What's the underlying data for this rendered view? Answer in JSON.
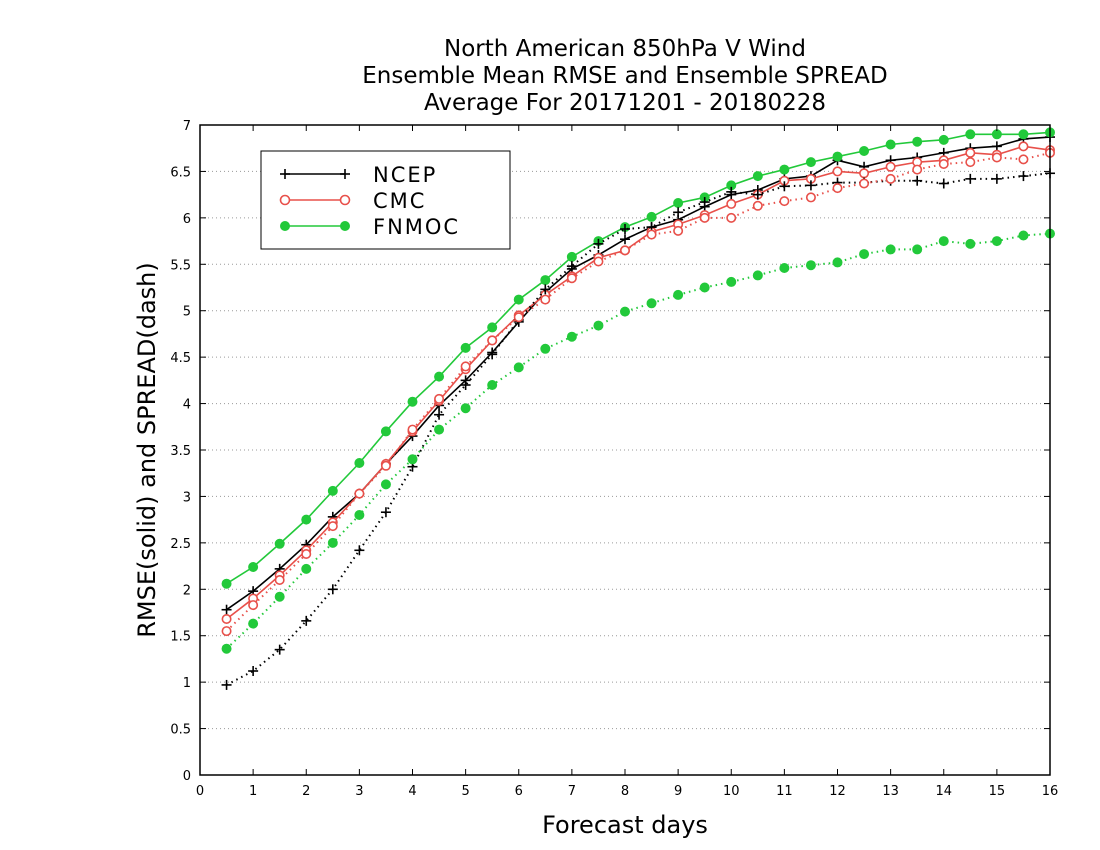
{
  "chart_data": {
    "type": "line",
    "title_lines": [
      "North American 850hPa V Wind",
      "Ensemble Mean RMSE and Ensemble SPREAD",
      "Average For 20171201 - 20180228"
    ],
    "xlabel": "Forecast days",
    "ylabel": "RMSE(solid) and SPREAD(dash)",
    "xlim": [
      0,
      16
    ],
    "ylim": [
      0,
      7
    ],
    "xticks": [
      0,
      1,
      2,
      3,
      4,
      5,
      6,
      7,
      8,
      9,
      10,
      11,
      12,
      13,
      14,
      15,
      16
    ],
    "yticks": [
      0,
      0.5,
      1,
      1.5,
      2,
      2.5,
      3,
      3.5,
      4,
      4.5,
      5,
      5.5,
      6,
      6.5,
      7
    ],
    "grid": "horizontal dotted",
    "legend_position": "top-left",
    "x": [
      0.5,
      1,
      1.5,
      2,
      2.5,
      3,
      3.5,
      4,
      4.5,
      5,
      5.5,
      6,
      6.5,
      7,
      7.5,
      8,
      8.5,
      9,
      9.5,
      10,
      10.5,
      11,
      11.5,
      12,
      12.5,
      13,
      13.5,
      14,
      14.5,
      15,
      15.5,
      16
    ],
    "series": [
      {
        "name": "NCEP",
        "kind": "RMSE",
        "style": "solid",
        "marker": "plus",
        "color": "#000000",
        "values": [
          1.78,
          1.98,
          2.22,
          2.48,
          2.78,
          3.03,
          3.35,
          3.65,
          3.98,
          4.25,
          4.55,
          4.88,
          5.2,
          5.45,
          5.6,
          5.77,
          5.9,
          5.98,
          6.12,
          6.25,
          6.3,
          6.42,
          6.45,
          6.62,
          6.55,
          6.62,
          6.65,
          6.7,
          6.75,
          6.77,
          6.85,
          6.87
        ]
      },
      {
        "name": "CMC",
        "kind": "RMSE",
        "style": "solid",
        "marker": "open-circle",
        "color": "#e8504a",
        "values": [
          1.68,
          1.9,
          2.15,
          2.42,
          2.72,
          3.03,
          3.35,
          3.7,
          4.03,
          4.37,
          4.68,
          4.95,
          5.17,
          5.37,
          5.57,
          5.65,
          5.85,
          5.93,
          6.03,
          6.15,
          6.25,
          6.4,
          6.42,
          6.5,
          6.48,
          6.55,
          6.6,
          6.62,
          6.7,
          6.68,
          6.77,
          6.73
        ]
      },
      {
        "name": "FNMOC",
        "kind": "RMSE",
        "style": "solid",
        "marker": "filled-circle",
        "color": "#22c93a",
        "values": [
          2.06,
          2.24,
          2.49,
          2.75,
          3.06,
          3.36,
          3.7,
          4.02,
          4.29,
          4.6,
          4.82,
          5.12,
          5.33,
          5.58,
          5.75,
          5.9,
          6.01,
          6.16,
          6.22,
          6.35,
          6.45,
          6.52,
          6.6,
          6.66,
          6.72,
          6.79,
          6.82,
          6.84,
          6.9,
          6.9,
          6.9,
          6.92
        ]
      },
      {
        "name": "NCEP",
        "kind": "SPREAD",
        "style": "dotted",
        "marker": "plus",
        "color": "#000000",
        "values": [
          0.97,
          1.12,
          1.35,
          1.66,
          2.0,
          2.42,
          2.83,
          3.32,
          3.88,
          4.2,
          4.53,
          4.9,
          5.23,
          5.48,
          5.72,
          5.88,
          5.9,
          6.06,
          6.17,
          6.28,
          6.25,
          6.34,
          6.35,
          6.38,
          6.38,
          6.4,
          6.4,
          6.37,
          6.42,
          6.42,
          6.45,
          6.48
        ]
      },
      {
        "name": "CMC",
        "kind": "SPREAD",
        "style": "dotted",
        "marker": "open-circle",
        "color": "#e8504a",
        "values": [
          1.55,
          1.83,
          2.1,
          2.38,
          2.68,
          3.03,
          3.33,
          3.72,
          4.05,
          4.4,
          4.68,
          4.93,
          5.12,
          5.35,
          5.53,
          5.65,
          5.82,
          5.86,
          6.0,
          6.0,
          6.13,
          6.18,
          6.22,
          6.32,
          6.37,
          6.42,
          6.52,
          6.58,
          6.6,
          6.65,
          6.63,
          6.7
        ]
      },
      {
        "name": "FNMOC",
        "kind": "SPREAD",
        "style": "dotted",
        "marker": "filled-circle",
        "color": "#22c93a",
        "values": [
          1.36,
          1.63,
          1.92,
          2.22,
          2.5,
          2.8,
          3.13,
          3.4,
          3.72,
          3.95,
          4.2,
          4.39,
          4.59,
          4.72,
          4.84,
          4.99,
          5.08,
          5.17,
          5.25,
          5.31,
          5.38,
          5.46,
          5.49,
          5.52,
          5.61,
          5.66,
          5.66,
          5.75,
          5.72,
          5.75,
          5.81,
          5.83
        ]
      }
    ],
    "legend": [
      "NCEP",
      "CMC",
      "FNMOC"
    ]
  }
}
